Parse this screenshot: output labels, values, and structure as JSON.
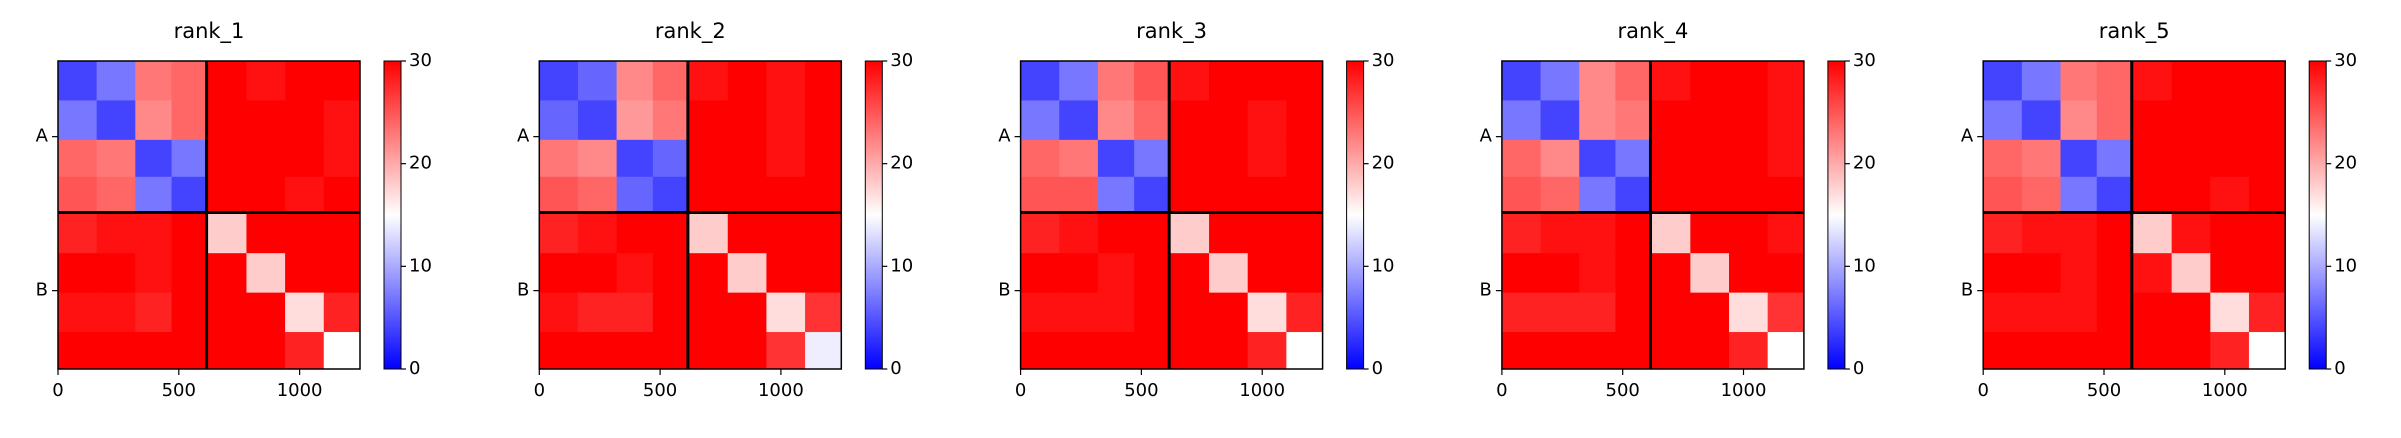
{
  "chart_data": [
    {
      "type": "heatmap",
      "title": "rank_1",
      "colormap": "bwr",
      "x_edges": [
        0,
        160,
        320,
        470,
        615,
        780,
        940,
        1100,
        1250
      ],
      "y_edges": [
        0,
        160,
        320,
        470,
        615,
        780,
        940,
        1100,
        1250
      ],
      "z": [
        [
          4,
          7,
          23,
          24,
          30,
          29,
          30,
          30
        ],
        [
          7,
          4,
          22,
          24,
          30,
          30,
          30,
          29
        ],
        [
          24,
          23,
          4,
          7,
          30,
          30,
          30,
          29
        ],
        [
          25,
          24,
          7,
          4,
          30,
          30,
          29,
          30
        ],
        [
          28,
          29,
          29,
          30,
          18,
          30,
          30,
          30
        ],
        [
          30,
          30,
          29,
          30,
          30,
          18,
          30,
          30
        ],
        [
          29,
          29,
          28,
          30,
          30,
          30,
          17,
          28
        ],
        [
          30,
          30,
          30,
          30,
          30,
          30,
          28,
          15
        ]
      ],
      "xlim": [
        0,
        1250
      ],
      "ylim": [
        1250,
        0
      ],
      "xticks": [
        0,
        500,
        1000
      ],
      "yticks": [
        {
          "value": 307,
          "label": "A"
        },
        {
          "value": 932,
          "label": "B"
        }
      ],
      "chain_boundaries": [
        615
      ],
      "clim": [
        0,
        30
      ],
      "cticks": [
        0,
        10,
        20,
        30
      ]
    },
    {
      "type": "heatmap",
      "title": "rank_2",
      "colormap": "bwr",
      "x_edges": [
        0,
        160,
        320,
        470,
        615,
        780,
        940,
        1100,
        1250
      ],
      "y_edges": [
        0,
        160,
        320,
        470,
        615,
        780,
        940,
        1100,
        1250
      ],
      "z": [
        [
          4,
          6,
          22,
          24,
          29,
          30,
          29,
          30
        ],
        [
          6,
          4,
          21,
          23,
          30,
          30,
          29,
          30
        ],
        [
          23,
          22,
          4,
          6,
          30,
          30,
          29,
          30
        ],
        [
          25,
          24,
          6,
          4,
          30,
          30,
          30,
          30
        ],
        [
          28,
          29,
          30,
          30,
          18,
          30,
          30,
          30
        ],
        [
          30,
          30,
          29,
          30,
          30,
          18,
          30,
          30
        ],
        [
          29,
          28,
          28,
          30,
          30,
          30,
          17,
          27
        ],
        [
          30,
          30,
          30,
          30,
          30,
          30,
          27,
          14
        ]
      ],
      "xlim": [
        0,
        1250
      ],
      "ylim": [
        1250,
        0
      ],
      "xticks": [
        0,
        500,
        1000
      ],
      "yticks": [
        {
          "value": 307,
          "label": "A"
        },
        {
          "value": 932,
          "label": "B"
        }
      ],
      "chain_boundaries": [
        615
      ],
      "clim": [
        0,
        30
      ],
      "cticks": [
        0,
        10,
        20,
        30
      ]
    },
    {
      "type": "heatmap",
      "title": "rank_3",
      "colormap": "bwr",
      "x_edges": [
        0,
        160,
        320,
        470,
        615,
        780,
        940,
        1100,
        1250
      ],
      "y_edges": [
        0,
        160,
        320,
        470,
        615,
        780,
        940,
        1100,
        1250
      ],
      "z": [
        [
          4,
          7,
          23,
          25,
          29,
          30,
          30,
          30
        ],
        [
          7,
          4,
          22,
          24,
          30,
          30,
          29,
          30
        ],
        [
          24,
          23,
          4,
          7,
          30,
          30,
          29,
          30
        ],
        [
          25,
          25,
          7,
          4,
          30,
          30,
          30,
          30
        ],
        [
          28,
          29,
          30,
          30,
          18,
          30,
          30,
          30
        ],
        [
          30,
          30,
          29,
          30,
          30,
          18,
          30,
          30
        ],
        [
          29,
          29,
          29,
          30,
          30,
          30,
          17,
          28
        ],
        [
          30,
          30,
          30,
          30,
          30,
          30,
          28,
          15
        ]
      ],
      "xlim": [
        0,
        1250
      ],
      "ylim": [
        1250,
        0
      ],
      "xticks": [
        0,
        500,
        1000
      ],
      "yticks": [
        {
          "value": 307,
          "label": "A"
        },
        {
          "value": 932,
          "label": "B"
        }
      ],
      "chain_boundaries": [
        615
      ],
      "clim": [
        0,
        30
      ],
      "cticks": [
        0,
        10,
        20,
        30
      ]
    },
    {
      "type": "heatmap",
      "title": "rank_4",
      "colormap": "bwr",
      "x_edges": [
        0,
        160,
        320,
        470,
        615,
        780,
        940,
        1100,
        1250
      ],
      "y_edges": [
        0,
        160,
        320,
        470,
        615,
        780,
        940,
        1100,
        1250
      ],
      "z": [
        [
          4,
          7,
          22,
          24,
          29,
          30,
          30,
          29
        ],
        [
          7,
          4,
          22,
          23,
          30,
          30,
          30,
          29
        ],
        [
          24,
          22,
          4,
          7,
          30,
          30,
          30,
          29
        ],
        [
          25,
          24,
          7,
          4,
          30,
          30,
          30,
          30
        ],
        [
          28,
          29,
          29,
          30,
          18,
          30,
          30,
          29
        ],
        [
          30,
          30,
          29,
          30,
          30,
          18,
          30,
          30
        ],
        [
          28,
          28,
          28,
          30,
          30,
          30,
          17,
          27
        ],
        [
          30,
          30,
          30,
          30,
          30,
          30,
          28,
          15
        ]
      ],
      "xlim": [
        0,
        1250
      ],
      "ylim": [
        1250,
        0
      ],
      "xticks": [
        0,
        500,
        1000
      ],
      "yticks": [
        {
          "value": 307,
          "label": "A"
        },
        {
          "value": 932,
          "label": "B"
        }
      ],
      "chain_boundaries": [
        615
      ],
      "clim": [
        0,
        30
      ],
      "cticks": [
        0,
        10,
        20,
        30
      ]
    },
    {
      "type": "heatmap",
      "title": "rank_5",
      "colormap": "bwr",
      "x_edges": [
        0,
        160,
        320,
        470,
        615,
        780,
        940,
        1100,
        1250
      ],
      "y_edges": [
        0,
        160,
        320,
        470,
        615,
        780,
        940,
        1100,
        1250
      ],
      "z": [
        [
          4,
          7,
          23,
          24,
          29,
          30,
          30,
          30
        ],
        [
          7,
          4,
          22,
          24,
          30,
          30,
          30,
          30
        ],
        [
          24,
          23,
          4,
          7,
          30,
          30,
          30,
          30
        ],
        [
          25,
          24,
          7,
          4,
          30,
          30,
          29,
          30
        ],
        [
          28,
          29,
          29,
          30,
          18,
          29,
          30,
          30
        ],
        [
          30,
          30,
          29,
          30,
          29,
          18,
          30,
          30
        ],
        [
          29,
          29,
          29,
          30,
          30,
          30,
          17,
          28
        ],
        [
          30,
          30,
          30,
          30,
          30,
          30,
          28,
          15
        ]
      ],
      "xlim": [
        0,
        1250
      ],
      "ylim": [
        1250,
        0
      ],
      "xticks": [
        0,
        500,
        1000
      ],
      "yticks": [
        {
          "value": 307,
          "label": "A"
        },
        {
          "value": 932,
          "label": "B"
        }
      ],
      "chain_boundaries": [
        615
      ],
      "clim": [
        0,
        30
      ],
      "cticks": [
        0,
        10,
        20,
        30
      ]
    }
  ]
}
